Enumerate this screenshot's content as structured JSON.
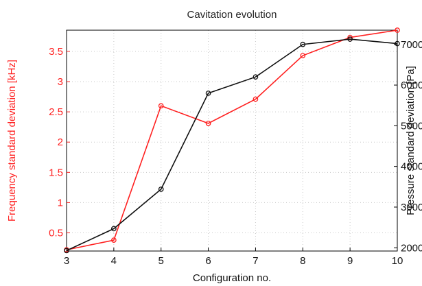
{
  "chart_data": {
    "type": "line",
    "title": "Cavitation evolution",
    "xlabel": "Configuration no.",
    "ylabel_left": "Frequency standard deviation [kHz]",
    "ylabel_right": "Pressure standard deviation [Pa]",
    "x": [
      3,
      4,
      5,
      6,
      7,
      8,
      9,
      10
    ],
    "xlim": [
      3,
      10
    ],
    "ylim_left": [
      0.2,
      3.85
    ],
    "ylim_right": [
      1920,
      7350
    ],
    "xticks": [
      3,
      4,
      5,
      6,
      7,
      8,
      9,
      10
    ],
    "yticks_left": [
      0.5,
      1,
      1.5,
      2,
      2.5,
      3,
      3.5
    ],
    "yticks_right": [
      2000,
      3000,
      4000,
      5000,
      6000,
      7000
    ],
    "grid": true,
    "series": [
      {
        "axis": "left",
        "color": "#ff2020",
        "marker": "circle",
        "values": [
          0.22,
          0.38,
          2.6,
          2.31,
          2.71,
          3.43,
          3.73,
          3.85
        ]
      },
      {
        "axis": "right",
        "color": "#111111",
        "marker": "circle",
        "values": [
          1930,
          2470,
          3440,
          5800,
          6200,
          7000,
          7130,
          7020
        ]
      }
    ],
    "colors": {
      "left_axis": "#ff2020",
      "right_axis": "#111111",
      "grid": "#c8c8c8"
    }
  }
}
